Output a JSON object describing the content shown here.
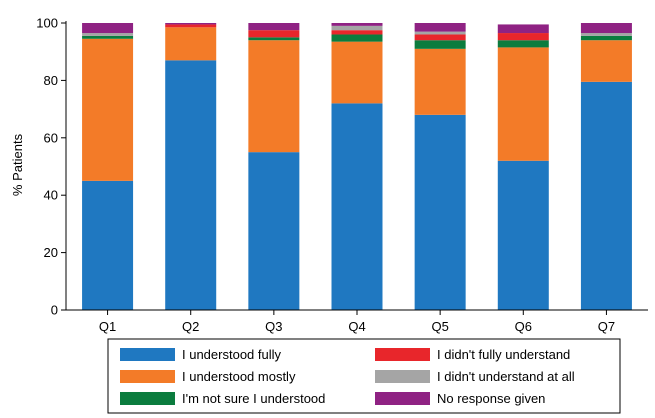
{
  "chart_data": {
    "type": "bar",
    "stacked": true,
    "ylabel": "% Patients",
    "xlabel": "",
    "ylim": [
      0,
      100
    ],
    "yticks": [
      0,
      20,
      40,
      60,
      80,
      100
    ],
    "grid": false,
    "legend_position": "bottom",
    "categories": [
      "Q1",
      "Q2",
      "Q3",
      "Q4",
      "Q5",
      "Q6",
      "Q7"
    ],
    "series": [
      {
        "name": "I understood fully",
        "color": "#1f78c1",
        "values": [
          45,
          87,
          55,
          72,
          68,
          52,
          79.5
        ]
      },
      {
        "name": "I understood mostly",
        "color": "#f37b28",
        "values": [
          49.5,
          11.5,
          39,
          21.5,
          23,
          39.5,
          14.5
        ]
      },
      {
        "name": "I'm not sure I understood",
        "color": "#0b7c3e",
        "values": [
          1,
          0,
          1,
          2.5,
          3,
          2.5,
          1.5
        ]
      },
      {
        "name": "I didn't fully understand",
        "color": "#e8262b",
        "values": [
          0,
          1,
          2.5,
          1.5,
          2,
          2.5,
          0
        ]
      },
      {
        "name": "I didn't understand at all",
        "color": "#a5a5a5",
        "values": [
          1,
          0,
          0,
          1.5,
          1,
          0,
          1
        ]
      },
      {
        "name": "No response given",
        "color": "#8f2283",
        "values": [
          3.5,
          0.5,
          2.5,
          1,
          3,
          3,
          3.5
        ]
      }
    ],
    "legend_order": [
      0,
      3,
      1,
      4,
      2,
      5
    ]
  }
}
